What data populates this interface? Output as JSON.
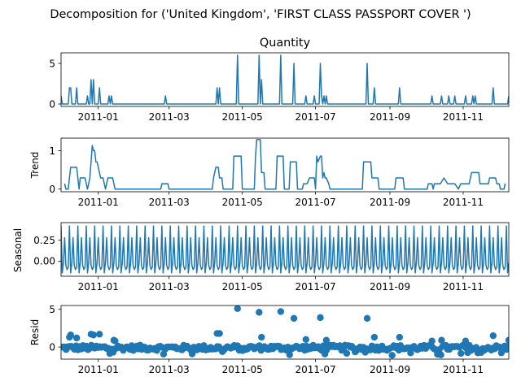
{
  "suptitle": "Decomposition for ('United Kingdom', 'FIRST CLASS PASSPORT COVER ')",
  "line_color": "#1f77b4",
  "chart_data": [
    {
      "type": "line",
      "title": "Quantity",
      "xlabel": "",
      "ylabel": "",
      "x_range": [
        "2010-12-01",
        "2011-12-09"
      ],
      "x_ticks": [
        "2011-01",
        "2011-03",
        "2011-05",
        "2011-07",
        "2011-09",
        "2011-11"
      ],
      "ylim": [
        -0.3,
        6.3
      ],
      "y_ticks": [
        0,
        5
      ],
      "grid": false,
      "points": [
        [
          "2010-12-01",
          1
        ],
        [
          "2010-12-02",
          0
        ],
        [
          "2010-12-07",
          0
        ],
        [
          "2010-12-08",
          2
        ],
        [
          "2010-12-09",
          2
        ],
        [
          "2010-12-10",
          0
        ],
        [
          "2010-12-13",
          0
        ],
        [
          "2010-12-14",
          2
        ],
        [
          "2010-12-15",
          0
        ],
        [
          "2010-12-22",
          0
        ],
        [
          "2010-12-23",
          1
        ],
        [
          "2010-12-24",
          0
        ],
        [
          "2010-12-25",
          0
        ],
        [
          "2010-12-26",
          3
        ],
        [
          "2010-12-27",
          0
        ],
        [
          "2010-12-28",
          3
        ],
        [
          "2010-12-29",
          0
        ],
        [
          "2011-01-01",
          0
        ],
        [
          "2011-01-02",
          2
        ],
        [
          "2011-01-03",
          0
        ],
        [
          "2011-01-09",
          0
        ],
        [
          "2011-01-10",
          1
        ],
        [
          "2011-01-11",
          0
        ],
        [
          "2011-01-12",
          1
        ],
        [
          "2011-01-13",
          0
        ],
        [
          "2011-02-25",
          0
        ],
        [
          "2011-02-26",
          1
        ],
        [
          "2011-02-27",
          0
        ],
        [
          "2011-04-09",
          0
        ],
        [
          "2011-04-10",
          2
        ],
        [
          "2011-04-11",
          0
        ],
        [
          "2011-04-12",
          2
        ],
        [
          "2011-04-13",
          0
        ],
        [
          "2011-04-26",
          0
        ],
        [
          "2011-04-27",
          6
        ],
        [
          "2011-04-28",
          0
        ],
        [
          "2011-05-14",
          0
        ],
        [
          "2011-05-15",
          6
        ],
        [
          "2011-05-16",
          0
        ],
        [
          "2011-05-17",
          3
        ],
        [
          "2011-05-18",
          0
        ],
        [
          "2011-06-01",
          0
        ],
        [
          "2011-06-02",
          6
        ],
        [
          "2011-06-03",
          0
        ],
        [
          "2011-06-12",
          0
        ],
        [
          "2011-06-13",
          5
        ],
        [
          "2011-06-14",
          0
        ],
        [
          "2011-06-22",
          0
        ],
        [
          "2011-06-23",
          1
        ],
        [
          "2011-06-24",
          0
        ],
        [
          "2011-06-29",
          0
        ],
        [
          "2011-06-30",
          1
        ],
        [
          "2011-07-01",
          0
        ],
        [
          "2011-07-04",
          0
        ],
        [
          "2011-07-05",
          5
        ],
        [
          "2011-07-06",
          1
        ],
        [
          "2011-07-07",
          0
        ],
        [
          "2011-07-08",
          1
        ],
        [
          "2011-07-09",
          0
        ],
        [
          "2011-07-10",
          1
        ],
        [
          "2011-07-11",
          0
        ],
        [
          "2011-08-12",
          0
        ],
        [
          "2011-08-13",
          5
        ],
        [
          "2011-08-14",
          0
        ],
        [
          "2011-08-18",
          0
        ],
        [
          "2011-08-19",
          2
        ],
        [
          "2011-08-20",
          0
        ],
        [
          "2011-09-08",
          0
        ],
        [
          "2011-09-09",
          2
        ],
        [
          "2011-09-10",
          0
        ],
        [
          "2011-10-05",
          0
        ],
        [
          "2011-10-06",
          1
        ],
        [
          "2011-10-07",
          0
        ],
        [
          "2011-10-13",
          0
        ],
        [
          "2011-10-14",
          1
        ],
        [
          "2011-10-15",
          0
        ],
        [
          "2011-10-19",
          0
        ],
        [
          "2011-10-20",
          1
        ],
        [
          "2011-10-21",
          0
        ],
        [
          "2011-10-24",
          0
        ],
        [
          "2011-10-25",
          1
        ],
        [
          "2011-10-26",
          0
        ],
        [
          "2011-11-02",
          0
        ],
        [
          "2011-11-03",
          1
        ],
        [
          "2011-11-04",
          0
        ],
        [
          "2011-11-08",
          0
        ],
        [
          "2011-11-09",
          1
        ],
        [
          "2011-11-10",
          0
        ],
        [
          "2011-11-11",
          1
        ],
        [
          "2011-11-12",
          0
        ],
        [
          "2011-11-25",
          0
        ],
        [
          "2011-11-26",
          2
        ],
        [
          "2011-11-27",
          0
        ],
        [
          "2011-12-08",
          0
        ],
        [
          "2011-12-09",
          1
        ]
      ]
    },
    {
      "type": "line",
      "title": "",
      "xlabel": "",
      "ylabel": "Trend",
      "x_range": [
        "2010-12-01",
        "2011-12-09"
      ],
      "x_ticks": [
        "2011-01",
        "2011-03",
        "2011-05",
        "2011-07",
        "2011-09",
        "2011-11"
      ],
      "ylim": [
        -0.07,
        1.33
      ],
      "y_ticks": [
        0,
        1
      ],
      "grid": false,
      "points": [
        [
          "2010-12-04",
          0.14
        ],
        [
          "2010-12-05",
          0
        ],
        [
          "2010-12-07",
          0
        ],
        [
          "2010-12-08",
          0.29
        ],
        [
          "2010-12-09",
          0.57
        ],
        [
          "2010-12-14",
          0.57
        ],
        [
          "2010-12-15",
          0.29
        ],
        [
          "2010-12-16",
          0
        ],
        [
          "2010-12-17",
          0.29
        ],
        [
          "2010-12-21",
          0.29
        ],
        [
          "2010-12-22",
          0.14
        ],
        [
          "2010-12-23",
          0
        ],
        [
          "2010-12-24",
          0.14
        ],
        [
          "2010-12-25",
          0.29
        ],
        [
          "2010-12-26",
          0.71
        ],
        [
          "2010-12-27",
          1.14
        ],
        [
          "2010-12-28",
          1.0
        ],
        [
          "2010-12-29",
          1.0
        ],
        [
          "2010-12-30",
          0.71
        ],
        [
          "2010-12-31",
          0.71
        ],
        [
          "2011-01-01",
          0.57
        ],
        [
          "2011-01-02",
          0.43
        ],
        [
          "2011-01-03",
          0.29
        ],
        [
          "2011-01-05",
          0.29
        ],
        [
          "2011-01-06",
          0.14
        ],
        [
          "2011-01-07",
          0
        ],
        [
          "2011-01-09",
          0.29
        ],
        [
          "2011-01-13",
          0.29
        ],
        [
          "2011-01-14",
          0.14
        ],
        [
          "2011-01-15",
          0
        ],
        [
          "2011-02-22",
          0
        ],
        [
          "2011-02-23",
          0.14
        ],
        [
          "2011-02-28",
          0.14
        ],
        [
          "2011-03-01",
          0
        ],
        [
          "2011-04-06",
          0
        ],
        [
          "2011-04-07",
          0.29
        ],
        [
          "2011-04-09",
          0.57
        ],
        [
          "2011-04-11",
          0.57
        ],
        [
          "2011-04-12",
          0.29
        ],
        [
          "2011-04-14",
          0.29
        ],
        [
          "2011-04-15",
          0
        ],
        [
          "2011-04-23",
          0
        ],
        [
          "2011-04-24",
          0.86
        ],
        [
          "2011-04-30",
          0.86
        ],
        [
          "2011-05-01",
          0
        ],
        [
          "2011-05-11",
          0
        ],
        [
          "2011-05-12",
          0.86
        ],
        [
          "2011-05-13",
          1.29
        ],
        [
          "2011-05-16",
          1.29
        ],
        [
          "2011-05-17",
          0.43
        ],
        [
          "2011-05-19",
          0.43
        ],
        [
          "2011-05-20",
          0
        ],
        [
          "2011-05-29",
          0
        ],
        [
          "2011-05-30",
          0.86
        ],
        [
          "2011-06-04",
          0.86
        ],
        [
          "2011-06-05",
          0
        ],
        [
          "2011-06-09",
          0
        ],
        [
          "2011-06-10",
          0.71
        ],
        [
          "2011-06-15",
          0.71
        ],
        [
          "2011-06-16",
          0
        ],
        [
          "2011-06-20",
          0
        ],
        [
          "2011-06-21",
          0.14
        ],
        [
          "2011-06-24",
          0.14
        ],
        [
          "2011-06-26",
          0.29
        ],
        [
          "2011-06-30",
          0.29
        ],
        [
          "2011-07-01",
          0
        ],
        [
          "2011-07-02",
          0.86
        ],
        [
          "2011-07-03",
          0.71
        ],
        [
          "2011-07-05",
          0.86
        ],
        [
          "2011-07-06",
          0.86
        ],
        [
          "2011-07-07",
          0.29
        ],
        [
          "2011-07-08",
          0.43
        ],
        [
          "2011-07-09",
          0.29
        ],
        [
          "2011-07-10",
          0.29
        ],
        [
          "2011-07-12",
          0.14
        ],
        [
          "2011-07-13",
          0
        ],
        [
          "2011-08-09",
          0
        ],
        [
          "2011-08-10",
          0.71
        ],
        [
          "2011-08-16",
          0.71
        ],
        [
          "2011-08-17",
          0.29
        ],
        [
          "2011-08-22",
          0.29
        ],
        [
          "2011-08-23",
          0
        ],
        [
          "2011-09-05",
          0
        ],
        [
          "2011-09-06",
          0.29
        ],
        [
          "2011-09-12",
          0.29
        ],
        [
          "2011-09-13",
          0
        ],
        [
          "2011-10-02",
          0
        ],
        [
          "2011-10-03",
          0.14
        ],
        [
          "2011-10-06",
          0.14
        ],
        [
          "2011-10-07",
          0
        ],
        [
          "2011-10-08",
          0.14
        ],
        [
          "2011-10-12",
          0.14
        ],
        [
          "2011-10-13",
          0.14
        ],
        [
          "2011-10-16",
          0.29
        ],
        [
          "2011-10-19",
          0.14
        ],
        [
          "2011-10-25",
          0.14
        ],
        [
          "2011-10-28",
          0
        ],
        [
          "2011-10-30",
          0.14
        ],
        [
          "2011-11-06",
          0.14
        ],
        [
          "2011-11-07",
          0.29
        ],
        [
          "2011-11-08",
          0.43
        ],
        [
          "2011-11-14",
          0.43
        ],
        [
          "2011-11-15",
          0.14
        ],
        [
          "2011-11-22",
          0.14
        ],
        [
          "2011-11-23",
          0.29
        ],
        [
          "2011-11-28",
          0.29
        ],
        [
          "2011-11-29",
          0.14
        ],
        [
          "2011-12-01",
          0.14
        ],
        [
          "2011-12-02",
          0
        ],
        [
          "2011-12-05",
          0
        ],
        [
          "2011-12-06",
          0.14
        ]
      ]
    },
    {
      "type": "line",
      "title": "",
      "xlabel": "",
      "ylabel": "Seasonal",
      "x_range": [
        "2010-12-01",
        "2011-12-09"
      ],
      "x_ticks": [
        "2011-01",
        "2011-03",
        "2011-05",
        "2011-07",
        "2011-09",
        "2011-11"
      ],
      "ylim": [
        -0.18,
        0.46
      ],
      "y_ticks": [
        0.25,
        0.0
      ],
      "y_tick_labels": [
        "0.25",
        "0.00"
      ],
      "grid": false,
      "period_days": 7,
      "weekly_pattern": [
        0.42,
        -0.14,
        -0.02,
        0.28,
        -0.05,
        -0.1,
        -0.07
      ]
    },
    {
      "type": "scatter",
      "title": "",
      "xlabel": "",
      "ylabel": "Resid",
      "x_range": [
        "2010-12-01",
        "2011-12-09"
      ],
      "x_ticks": [
        "2011-01",
        "2011-03",
        "2011-05",
        "2011-07",
        "2011-09",
        "2011-11"
      ],
      "ylim": [
        -1.6,
        5.5
      ],
      "y_ticks": [
        0,
        5
      ],
      "grid": false,
      "baseline": 0,
      "points": [
        [
          "2010-12-08",
          1.3
        ],
        [
          "2010-12-09",
          1.6
        ],
        [
          "2010-12-14",
          1.2
        ],
        [
          "2010-12-26",
          1.7
        ],
        [
          "2010-12-28",
          1.6
        ],
        [
          "2011-01-02",
          1.7
        ],
        [
          "2011-01-14",
          0.9
        ],
        [
          "2011-01-15",
          0.8
        ],
        [
          "2011-04-10",
          1.8
        ],
        [
          "2011-04-12",
          1.8
        ],
        [
          "2011-04-27",
          5.1
        ],
        [
          "2011-05-15",
          4.6
        ],
        [
          "2011-05-17",
          1.3
        ],
        [
          "2011-06-02",
          4.7
        ],
        [
          "2011-06-13",
          3.8
        ],
        [
          "2011-06-23",
          1.0
        ],
        [
          "2011-07-05",
          3.9
        ],
        [
          "2011-07-10",
          0.9
        ],
        [
          "2011-08-13",
          3.8
        ],
        [
          "2011-08-19",
          1.3
        ],
        [
          "2011-09-09",
          1.3
        ],
        [
          "2011-10-06",
          0.8
        ],
        [
          "2011-10-14",
          0.9
        ],
        [
          "2011-11-03",
          0.8
        ],
        [
          "2011-11-26",
          1.5
        ],
        [
          "2011-12-09",
          0.9
        ]
      ]
    }
  ]
}
